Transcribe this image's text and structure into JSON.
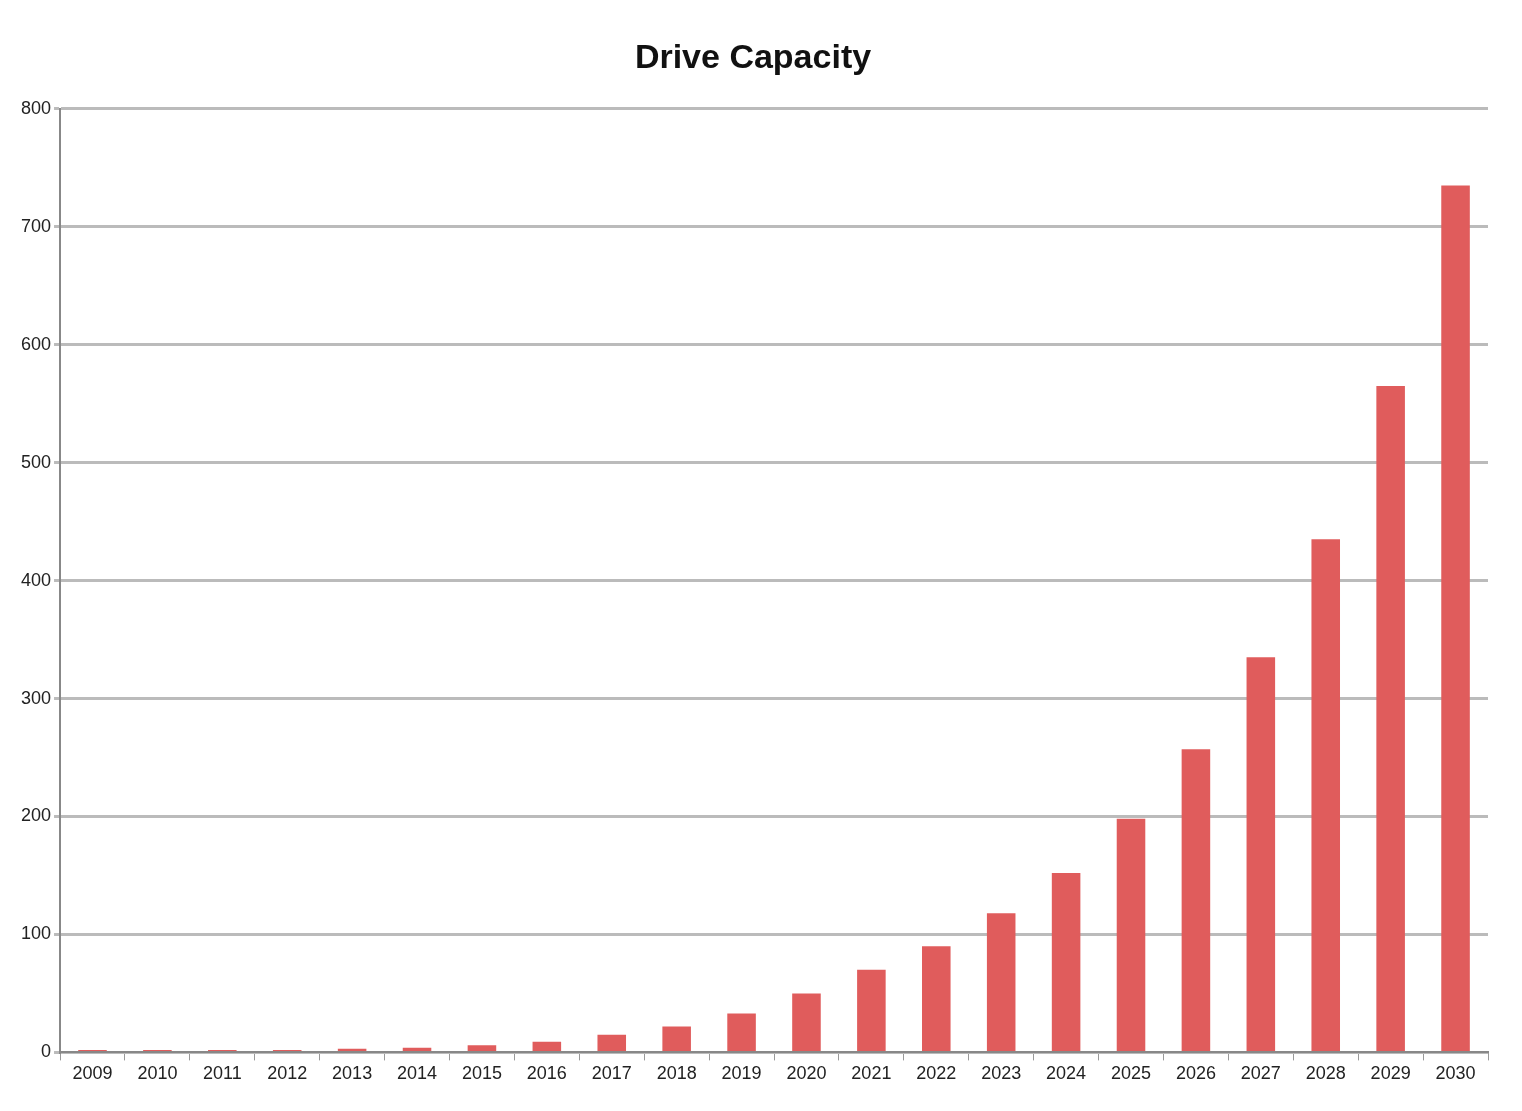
{
  "chart_data": {
    "type": "bar",
    "title": "Drive Capacity",
    "categories": [
      "2009",
      "2010",
      "2011",
      "2012",
      "2013",
      "2014",
      "2015",
      "2016",
      "2017",
      "2018",
      "2019",
      "2020",
      "2021",
      "2022",
      "2023",
      "2024",
      "2025",
      "2026",
      "2027",
      "2028",
      "2029",
      "2030"
    ],
    "values": [
      2,
      2,
      2,
      2,
      3,
      4,
      6,
      9,
      15,
      22,
      33,
      50,
      70,
      90,
      118,
      152,
      198,
      257,
      335,
      435,
      565,
      735
    ],
    "color": "#e05c5c",
    "ylim": [
      0,
      800
    ],
    "yticks": [
      0,
      100,
      200,
      300,
      400,
      500,
      600,
      700,
      800
    ],
    "grid": "y",
    "legend": false
  }
}
